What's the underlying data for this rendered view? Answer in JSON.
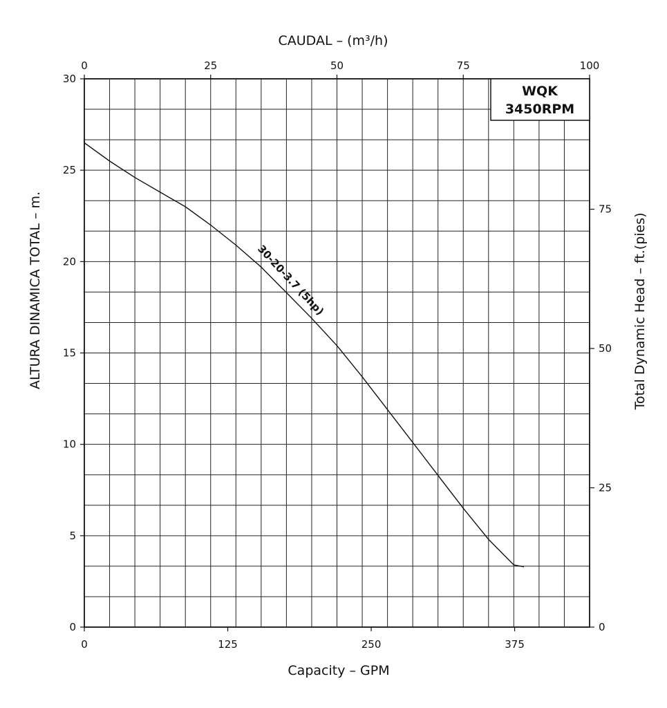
{
  "chart_data": {
    "type": "line",
    "top_axis": {
      "label": "CAUDAL  –  (m³/h)",
      "min": 0,
      "max": 100,
      "ticks": [
        0,
        25,
        50,
        75,
        100
      ]
    },
    "bottom_axis": {
      "label": "Capacity  –  GPM",
      "min": 0,
      "max": 440.3,
      "ticks": [
        0,
        125,
        250,
        375
      ]
    },
    "left_axis": {
      "label": "ALTURA DINAMICA  TOTAL  –  m.",
      "min": 0,
      "max": 30,
      "ticks": [
        0,
        5,
        10,
        15,
        20,
        25,
        30
      ]
    },
    "right_axis": {
      "label": "Total Dynamic Head  –  ft.(pies)",
      "min": 0,
      "max": 98.4,
      "ticks": [
        0,
        25,
        50,
        75
      ]
    },
    "grid": true,
    "legend_box": {
      "line1": "WQK",
      "line2": "3450RPM",
      "placement": "top-right"
    },
    "series": [
      {
        "name": "30-20-3.7 (5hp)",
        "x": [
          0,
          5,
          10,
          15,
          20,
          25,
          30,
          35,
          40,
          45,
          50,
          55,
          60,
          65,
          70,
          75,
          80,
          85,
          87
        ],
        "y": [
          26.5,
          25.5,
          24.6,
          23.8,
          23.0,
          22.0,
          20.9,
          19.7,
          18.3,
          16.9,
          15.4,
          13.7,
          11.9,
          10.1,
          8.3,
          6.5,
          4.8,
          3.4,
          3.3
        ]
      }
    ]
  }
}
